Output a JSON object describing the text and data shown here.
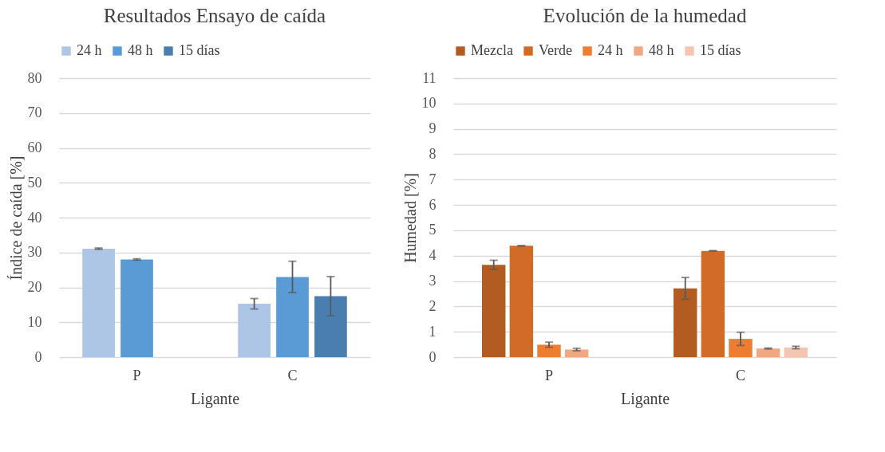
{
  "chart_data": [
    {
      "type": "bar",
      "title": "Resultados Ensayo de caída",
      "xlabel": "Ligante",
      "ylabel": "Índice de caída [%]",
      "categories": [
        "P",
        "C"
      ],
      "ylim": [
        0,
        80
      ],
      "yticks": [
        0,
        10,
        20,
        30,
        40,
        50,
        60,
        70,
        80
      ],
      "grid": "y",
      "legend": "top",
      "series": [
        {
          "name": "24 h",
          "color": "#adc6e6",
          "values": [
            31.1,
            15.3
          ],
          "errors": [
            0.2,
            1.5
          ]
        },
        {
          "name": "48 h",
          "color": "#5b9bd5",
          "values": [
            28.0,
            23.0
          ],
          "errors": [
            0.2,
            4.5
          ]
        },
        {
          "name": "15 días",
          "color": "#4a7eb0",
          "values": [
            null,
            17.5
          ],
          "errors": [
            null,
            5.6
          ]
        }
      ]
    },
    {
      "type": "bar",
      "title": "Evolución de la humedad",
      "xlabel": "Ligante",
      "ylabel": "Humedad [%]",
      "categories": [
        "P",
        "C"
      ],
      "ylim": [
        0,
        11
      ],
      "yticks": [
        0,
        1,
        2,
        3,
        4,
        5,
        6,
        7,
        8,
        9,
        10,
        11
      ],
      "grid": "y",
      "legend": "top",
      "series": [
        {
          "name": "Mezcla",
          "color": "#b35c22",
          "values": [
            3.64,
            2.71
          ],
          "errors": [
            0.18,
            0.43
          ]
        },
        {
          "name": "Verde",
          "color": "#d36b28",
          "values": [
            4.39,
            4.19
          ],
          "errors": [
            0.01,
            0.01
          ]
        },
        {
          "name": "24 h",
          "color": "#ed7d31",
          "values": [
            0.49,
            0.72
          ],
          "errors": [
            0.1,
            0.26
          ]
        },
        {
          "name": "48 h",
          "color": "#f0a883",
          "values": [
            0.3,
            0.34
          ],
          "errors": [
            0.05,
            0.02
          ]
        },
        {
          "name": "15 días",
          "color": "#f4c6b1",
          "values": [
            null,
            0.38
          ],
          "errors": [
            null,
            0.05
          ]
        }
      ]
    }
  ]
}
